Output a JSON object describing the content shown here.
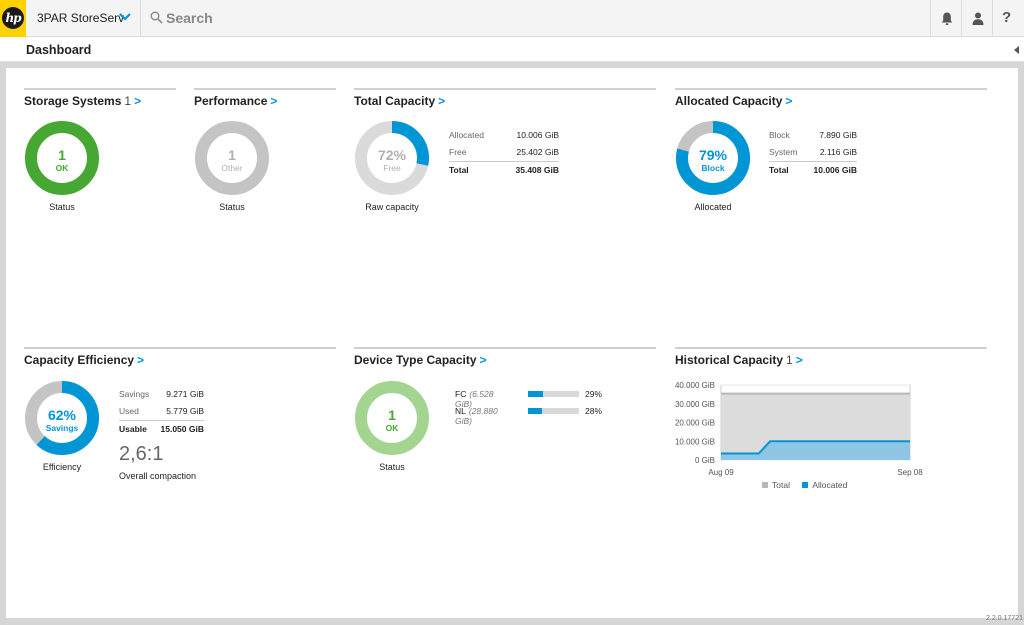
{
  "app": {
    "logo_text": "hp",
    "name": "3PAR StoreServ"
  },
  "search": {
    "placeholder": "Search"
  },
  "icons": {
    "notifications": "bell-icon",
    "user": "user-icon",
    "help": "?"
  },
  "page": {
    "title": "Dashboard"
  },
  "colors": {
    "accent": "#0096d6",
    "ok": "#46a832",
    "ok_light": "#a3d490",
    "neutral": "#c4c4c4",
    "light_neutral": "#dadada"
  },
  "panels": {
    "storage_systems": {
      "title": "Storage Systems",
      "count": "1",
      "arrow": ">",
      "donut_value": "1",
      "donut_label": "OK",
      "caption": "Status"
    },
    "performance": {
      "title": "Performance",
      "arrow": ">",
      "donut_value": "1",
      "donut_label": "Other",
      "caption": "Status"
    },
    "total_capacity": {
      "title": "Total Capacity",
      "arrow": ">",
      "donut_value": "72%",
      "donut_label": "Free",
      "fraction_used": 0.283,
      "caption": "Raw capacity",
      "rows": [
        {
          "label": "Allocated",
          "value": "10.006 GiB"
        },
        {
          "label": "Free",
          "value": "25.402 GiB"
        }
      ],
      "total": {
        "label": "Total",
        "value": "35.408 GiB"
      }
    },
    "allocated_capacity": {
      "title": "Allocated Capacity",
      "arrow": ">",
      "donut_value": "79%",
      "donut_label": "Block",
      "fraction_block": 0.79,
      "caption": "Allocated",
      "rows": [
        {
          "label": "Block",
          "value": "7.890 GiB"
        },
        {
          "label": "System",
          "value": "2.116 GiB"
        }
      ],
      "total": {
        "label": "Total",
        "value": "10.006 GiB"
      }
    },
    "capacity_efficiency": {
      "title": "Capacity Efficiency",
      "arrow": ">",
      "donut_value": "62%",
      "donut_label": "Savings",
      "fraction_savings": 0.62,
      "caption": "Efficiency",
      "rows": [
        {
          "label": "Savings",
          "value": "9.271 GiB"
        },
        {
          "label": "Used",
          "value": "5.779 GiB"
        }
      ],
      "total": {
        "label": "Usable",
        "value": "15.050 GiB"
      },
      "ratio": "2,6:1",
      "ratio_label": "Overall compaction"
    },
    "device_type_capacity": {
      "title": "Device Type Capacity",
      "arrow": ">",
      "donut_value": "1",
      "donut_label": "OK",
      "caption": "Status",
      "devices": [
        {
          "name": "FC",
          "size": "(6.528 GiB)",
          "percent": "29%",
          "fraction": 0.29
        },
        {
          "name": "NL",
          "size": "(28.880 GiB)",
          "percent": "28%",
          "fraction": 0.28
        }
      ]
    },
    "historical_capacity": {
      "title": "Historical Capacity",
      "count": "1",
      "arrow": ">"
    }
  },
  "chart_data": {
    "type": "area",
    "title": "Historical Capacity",
    "x_tick_labels": [
      "Aug 09",
      "Sep 08"
    ],
    "y_tick_labels": [
      "40.000 GiB",
      "30.000 GiB",
      "20.000 GiB",
      "10.000 GiB",
      "0 GiB"
    ],
    "ylim": [
      0,
      40000
    ],
    "y_unit": "GiB",
    "legend": [
      "Total",
      "Allocated"
    ],
    "legend_position": "bottom",
    "series": [
      {
        "name": "Total",
        "color": "#b8b8b8",
        "x": [
          0,
          1
        ],
        "values": [
          35408,
          35408
        ]
      },
      {
        "name": "Allocated",
        "color": "#0096d6",
        "x": [
          0,
          0.2,
          0.26,
          1
        ],
        "values": [
          3500,
          3500,
          10006,
          10006
        ]
      }
    ]
  },
  "footer": {
    "version": "2.2.0.17721"
  }
}
